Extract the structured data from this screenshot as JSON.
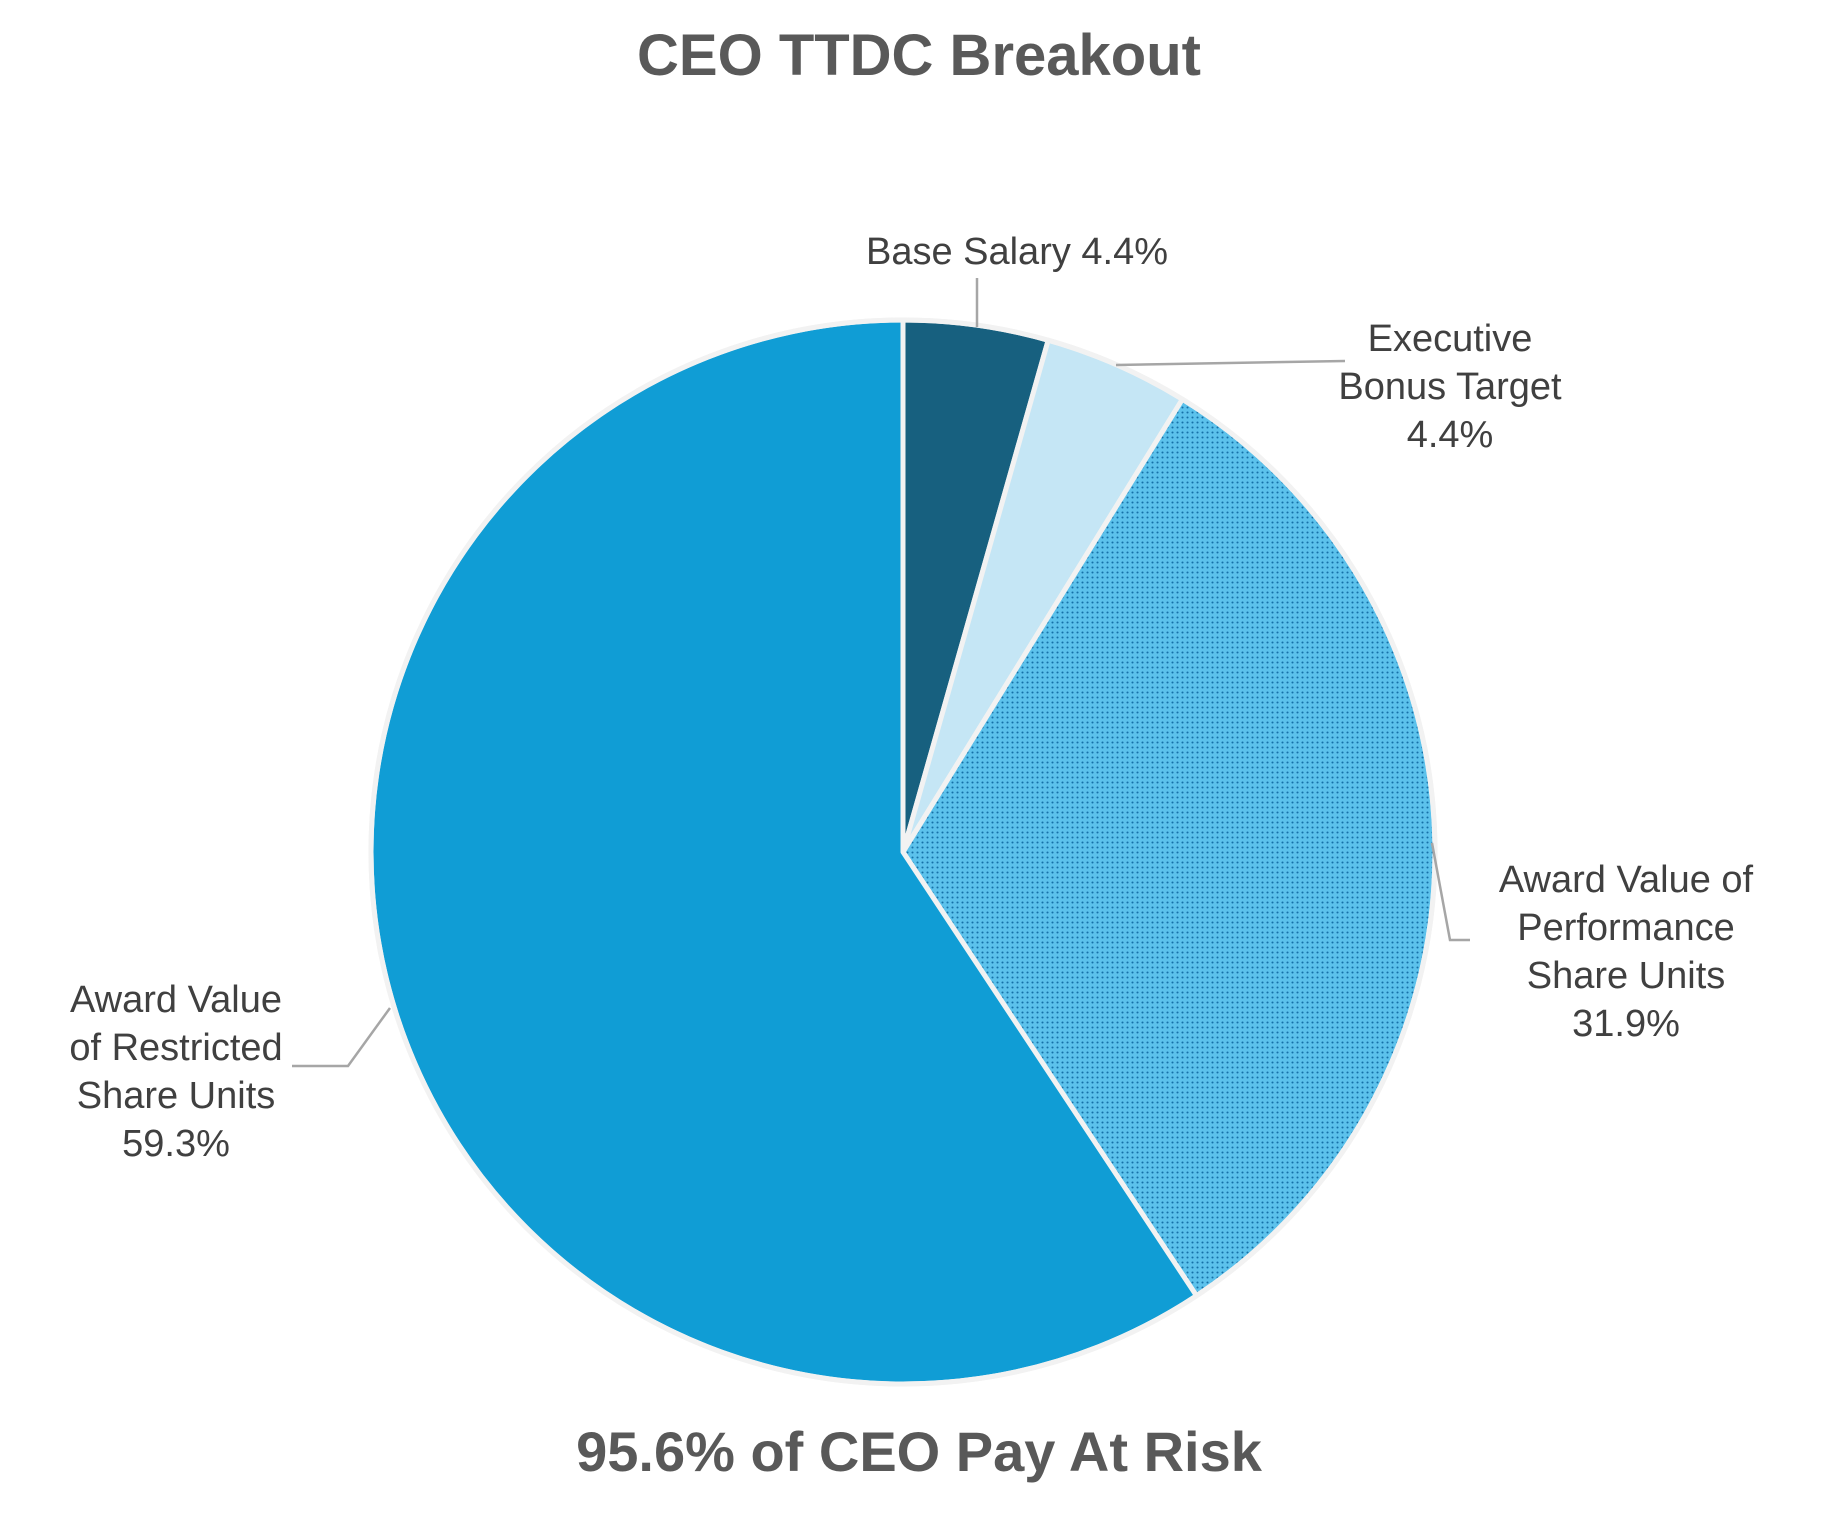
{
  "chart_data": {
    "type": "pie",
    "title": "CEO TTDC Breakout",
    "subtitle": "95.6% of CEO Pay At Risk",
    "start_angle_deg": 0,
    "direction": "clockwise",
    "slices": [
      {
        "name": "Base Salary",
        "value": 4.4,
        "label_lines": [
          "Base Salary 4.4%"
        ],
        "color": "#17607f",
        "pattern": "none"
      },
      {
        "name": "Executive Bonus Target",
        "value": 4.4,
        "label_lines": [
          "Executive",
          "Bonus Target",
          "4.4%"
        ],
        "color": "#c5e6f5",
        "pattern": "none"
      },
      {
        "name": "Award Value of Performance Share Units",
        "value": 31.9,
        "label_lines": [
          "Award Value of",
          "Performance",
          "Share Units",
          "31.9%"
        ],
        "color": "#5cc2ec",
        "pattern": "dots"
      },
      {
        "name": "Award Value of Restricted Share Units",
        "value": 59.3,
        "label_lines": [
          "Award Value",
          "of Restricted",
          "Share Units",
          "59.3%"
        ],
        "color": "#109dd5",
        "pattern": "none"
      }
    ],
    "pattern_dot_color": "#1570a8"
  }
}
